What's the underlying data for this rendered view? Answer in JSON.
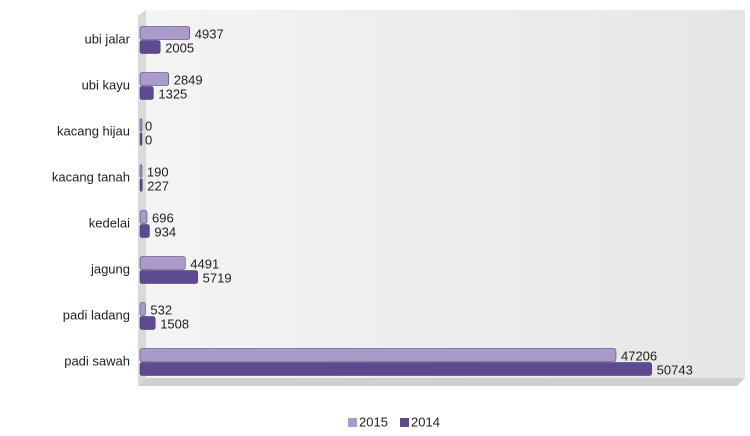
{
  "chart_data": {
    "type": "bar",
    "orientation": "horizontal",
    "categories": [
      "ubi jalar",
      "ubi kayu",
      "kacang hijau",
      "kacang tanah",
      "kedelai",
      "jagung",
      "padi ladang",
      "padi sawah"
    ],
    "series": [
      {
        "name": "2015",
        "color": "#a99ac9",
        "values": [
          4937,
          2849,
          0,
          190,
          696,
          4491,
          532,
          47206
        ]
      },
      {
        "name": "2014",
        "color": "#5e4a91",
        "values": [
          2005,
          1325,
          0,
          227,
          934,
          5719,
          1508,
          50743
        ]
      }
    ],
    "xlim": [
      0,
      60000
    ],
    "legend": "bottom"
  }
}
